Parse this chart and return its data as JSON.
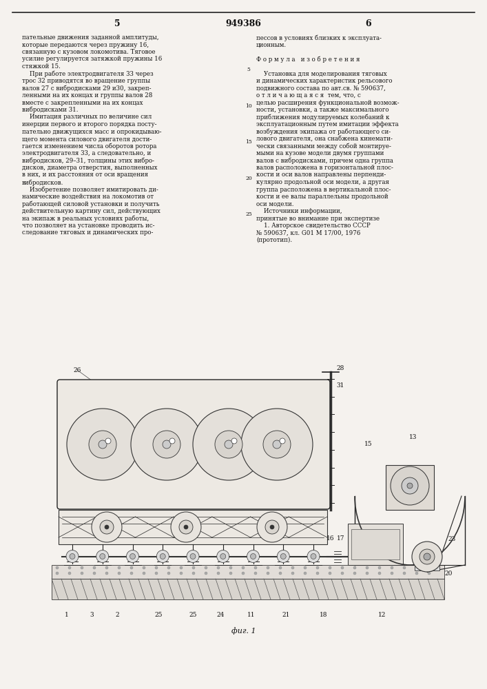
{
  "page_width": 7.07,
  "page_height": 10.0,
  "bg_color": "#f5f2ee",
  "patent_number": "949386",
  "col_left_num": "5",
  "col_right_num": "6",
  "header_fontsize": 9,
  "body_fontsize": 6.2,
  "left_col_text": "пательные движения заданной амплитуды,\nкоторые передаются через пружину 16,\nсвязанную с кузовом локомотива. Тяговое\nусилие регулируется затяжкой пружины 16\nстяжкой 15.\n    При работе электродвигателя 33 через\nтрос 32 приводятся во вращение группы\nвалов 27 с вибродисками 29 и30, закреп-\nленными на их концах и группы валов 28\nвместе с закрепленными на их концах\nвибродисками 31.\n    Имитация различных по величине сил\nинерции первого и второго порядка посту-\nпательно движущихся масс и опрокидываю-\nщего момента силового двигателя дости-\nгается изменением числа оборотов ротора\nэлектродвигателя 33, а следовательно, и\nвибродисков, 29–31, толщины этих вибро-\nдисков, диаметра отверстия, выполненных\nв них, и их расстояния от оси вращения\nвибродисков.\n    Изобретение позволяет имитировать ди-\nнамические воздействия на локомотив от\nработающей силовой установки и получить\nдействительную картину сил, действующих\nна экипаж в реальных условиях работы,\nчто позволяет на установке проводить ис-\nследование тяговых и динамических про-",
  "right_col_text": "пессов в условиях близких к эксплуата-\nционным.\n \nФ о р м у л а   и з о б р е т е н и я\n \n    Установка для моделирования тяговых\nи динамических характеристик рельсового\nподвижного состава по авт.св. № 590637,\nо т л и ч а ю щ а я с я  тем, что, с\nцелью расширения функциональной возмож-\nности, установки, а также максимального\nприближения модулируемых колебаний к\nэксплуатационным путем имитации эффекта\nвозбуждения экипажа от работающего си-\nлового двигателя, она снабжена кинемати-\nчески связанными между собой монтируе-\nмыми на кузове модели двумя группами\nвалов с вибродисками, причем одна группа\nвалов расположена в горизонтальной плос-\nкости и оси валов направлены перпенди-\nкулярно продольной оси модели, а другая\nгруппа расположена в вертикальной плос-\nкости и ее валы параллельны продольной\nоси модели.\n    Источники информации,\nпринятые во внимание при экспертизе\n    1. Авторское свидетельство СССР\n№ 590637, кл. G01 M 17/00, 1976\n(прототип).",
  "line_numbers": [
    "5",
    "10",
    "15",
    "20",
    "25"
  ],
  "diagram_caption": "фиг. 1"
}
